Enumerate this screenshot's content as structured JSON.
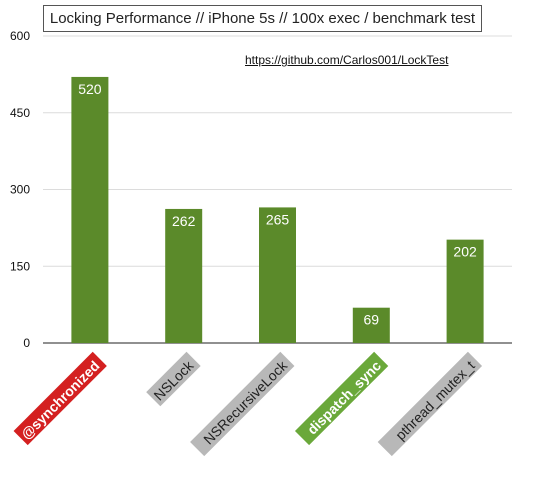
{
  "chart_data": {
    "type": "bar",
    "title": "Locking Performance // iPhone 5s // 100x exec / benchmark test",
    "annotation": "https://github.com/Carlos001/LockTest",
    "categories": [
      "@synchronized",
      "NSLock",
      "NSRecursiveLock",
      "dispatch_sync",
      "pthread_mutex_t"
    ],
    "values": [
      520,
      262,
      265,
      69,
      202
    ],
    "data_labels": [
      "520",
      "262",
      "265",
      "69",
      "202"
    ],
    "ylim": [
      0,
      600
    ],
    "yticks": [
      "0",
      "150",
      "300",
      "450",
      "600"
    ],
    "ytick_values": [
      0,
      150,
      300,
      450,
      600
    ],
    "grid": true,
    "xlabel": "",
    "ylabel": "",
    "bar_color": "#5b8a2a",
    "category_label_colors": [
      "#d42020",
      "#b8b8b8",
      "#b8b8b8",
      "#6aa83a",
      "#b8b8b8"
    ]
  }
}
